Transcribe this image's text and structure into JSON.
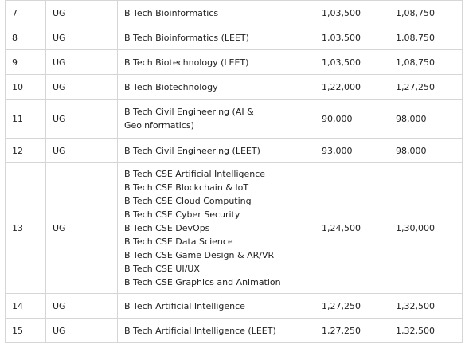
{
  "table": {
    "rows": [
      {
        "sno": "7",
        "level": "UG",
        "courses": [
          "B Tech Bioinformatics"
        ],
        "fee_1": "1,03,500",
        "fee_2": "1,08,750"
      },
      {
        "sno": "8",
        "level": "UG",
        "courses": [
          "B Tech Bioinformatics (LEET)"
        ],
        "fee_1": "1,03,500",
        "fee_2": "1,08,750"
      },
      {
        "sno": "9",
        "level": "UG",
        "courses": [
          "B Tech Biotechnology (LEET)"
        ],
        "fee_1": "1,03,500",
        "fee_2": "1,08,750"
      },
      {
        "sno": "10",
        "level": "UG",
        "courses": [
          "B Tech Biotechnology"
        ],
        "fee_1": "1,22,000",
        "fee_2": " 1,27,250"
      },
      {
        "sno": "11",
        "level": "UG",
        "courses": [
          "B Tech Civil Engineering (AI &",
          "Geoinformatics)"
        ],
        "fee_1": "90,000",
        "fee_2": "98,000"
      },
      {
        "sno": "12",
        "level": "UG",
        "courses": [
          "B Tech Civil Engineering (LEET)"
        ],
        "fee_1": "93,000",
        "fee_2": "98,000"
      },
      {
        "sno": "13",
        "level": "UG",
        "courses": [
          "B Tech CSE Artificial Intelligence",
          "B Tech CSE Blockchain & IoT",
          "B Tech CSE Cloud Computing",
          "B Tech CSE Cyber Security",
          "B Tech CSE DevOps",
          "B Tech CSE Data Science",
          "B Tech CSE Game Design & AR/VR",
          "B Tech CSE UI/UX",
          "B Tech CSE Graphics and Animation"
        ],
        "fee_1": "1,24,500",
        "fee_2": "1,30,000"
      },
      {
        "sno": "14",
        "level": "UG",
        "courses": [
          "B Tech Artificial Intelligence"
        ],
        "fee_1": "1,27,250",
        "fee_2": "1,32,500"
      },
      {
        "sno": "15",
        "level": "UG",
        "courses": [
          "B Tech Artificial Intelligence (LEET)"
        ],
        "fee_1": "1,27,250",
        "fee_2": "1,32,500"
      }
    ]
  }
}
